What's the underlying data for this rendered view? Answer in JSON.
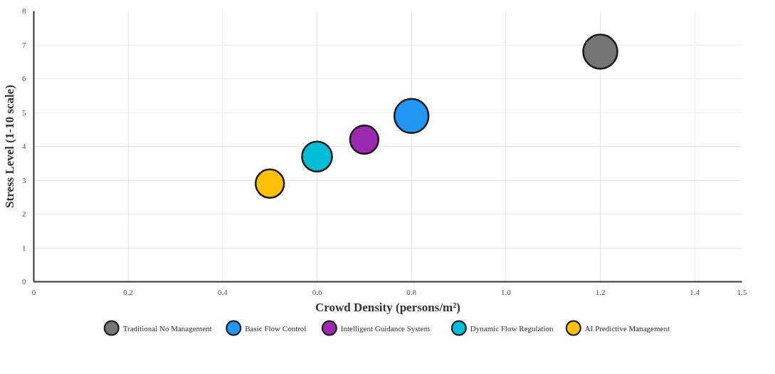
{
  "chart_data": {
    "type": "bubble",
    "xlabel": "Crowd Density (persons/m²)",
    "ylabel": "Stress Level (1-10 scale)",
    "xlim": [
      0,
      1.5
    ],
    "xticks": [
      0,
      0.2,
      0.4,
      0.6,
      0.8,
      {
        "value": 1.0,
        "label": "1.0"
      },
      1.2,
      1.4,
      1.5
    ],
    "ylim": [
      0,
      8
    ],
    "yticks": [
      0,
      1,
      2,
      3,
      4,
      5,
      6,
      7,
      8
    ],
    "grid": true,
    "legend": "bottom",
    "series": [
      {
        "name": "Traditional No Management",
        "color": "#757575",
        "x": [
          1.2
        ],
        "values": [
          6.8
        ],
        "sizes": [
          1
        ]
      },
      {
        "name": "Basic Flow Control",
        "color": "#2196f3",
        "x": [
          0.8
        ],
        "values": [
          4.9
        ],
        "sizes": [
          1
        ]
      },
      {
        "name": "Intelligent Guidance System",
        "color": "#9c27b0",
        "x": [
          0.7
        ],
        "values": [
          4.2
        ],
        "sizes": [
          0.69
        ]
      },
      {
        "name": "Dynamic Flow Regulation",
        "color": "#00bcd4",
        "x": [
          0.6
        ],
        "values": [
          3.7
        ],
        "sizes": [
          0.77
        ]
      },
      {
        "name": "AI Predictive Management",
        "color": "#ffc107",
        "x": [
          0.5
        ],
        "values": [
          2.9
        ],
        "sizes": [
          0.69
        ]
      }
    ]
  }
}
